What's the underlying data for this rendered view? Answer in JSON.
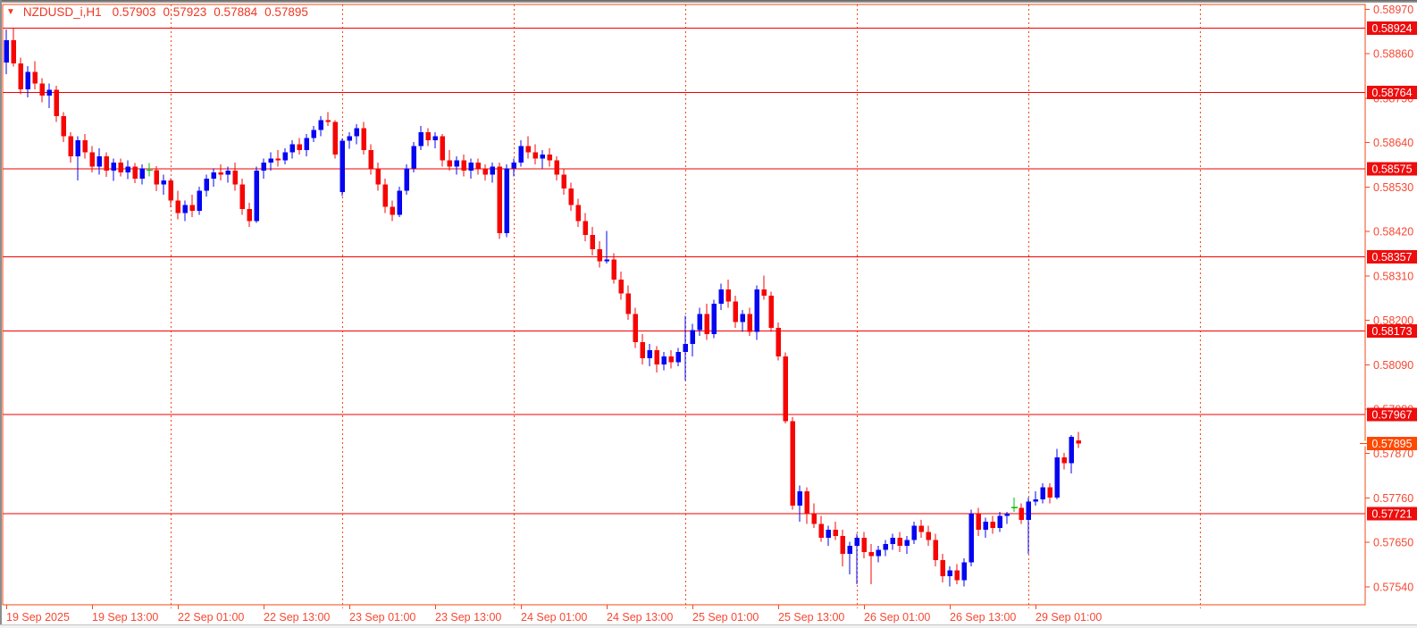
{
  "header": {
    "symbol_timeframe": "NZDUSD_i,H1",
    "open": "0.57903",
    "high": "0.57923",
    "low": "0.57884",
    "close": "0.57895",
    "marker_icon": "down-triangle"
  },
  "colors": {
    "background": "#ffffff",
    "frame": "#f24a16",
    "separator": "#f24a16",
    "level_line": "#ef0000",
    "axis_text": "#f64832",
    "title_text": "#ef3723",
    "badge_bg": "#ee0c0c",
    "current_badge_bg": "#ff4800",
    "badge_text": "#ffffff",
    "bear": "#f60505",
    "bull": "#0505f2",
    "doji": "#00bf00"
  },
  "chart_data": {
    "type": "candlestick",
    "title": "NZDUSD_i,H1 0.57903 0.57923 0.57884 0.57895",
    "symbol": "NZDUSD_i",
    "timeframe": "H1",
    "last_candle_ohlc": [
      0.57903,
      0.57923,
      0.57884,
      0.57895
    ],
    "current_price": 0.57895,
    "y_axis": {
      "side": "right",
      "ticks": [
        0.5897,
        0.5886,
        0.5875,
        0.5864,
        0.5853,
        0.5842,
        0.5831,
        0.582,
        0.5809,
        0.5798,
        0.5787,
        0.5776,
        0.5765,
        0.5754
      ],
      "tick_step": 0.0011,
      "visible_range": [
        0.5754,
        0.5897
      ]
    },
    "x_axis": {
      "labels": [
        "19 Sep 2025",
        "19 Sep 13:00",
        "22 Sep 01:00",
        "22 Sep 13:00",
        "23 Sep 01:00",
        "23 Sep 13:00",
        "24 Sep 01:00",
        "24 Sep 13:00",
        "25 Sep 01:00",
        "25 Sep 13:00",
        "26 Sep 01:00",
        "26 Sep 13:00",
        "29 Sep 01:00"
      ],
      "label_indices": [
        1,
        13,
        25,
        37,
        49,
        61,
        73,
        85,
        97,
        109,
        121,
        133,
        145
      ]
    },
    "level_lines": [
      0.58924,
      0.58764,
      0.58575,
      0.58357,
      0.58173,
      0.57967,
      0.57721
    ],
    "day_separator_indices": [
      24,
      48,
      72,
      96,
      120,
      144,
      168
    ],
    "grid": false,
    "legend": "none",
    "candles": [
      [
        0.5882,
        0.58845,
        0.588,
        0.58838
      ],
      [
        0.58838,
        0.5892,
        0.5881,
        0.58894
      ],
      [
        0.58894,
        0.58924,
        0.58828,
        0.58836
      ],
      [
        0.58836,
        0.5885,
        0.5876,
        0.58772
      ],
      [
        0.58772,
        0.5883,
        0.58752,
        0.58815
      ],
      [
        0.58815,
        0.58842,
        0.58772,
        0.58786
      ],
      [
        0.58786,
        0.588,
        0.5874,
        0.58756
      ],
      [
        0.58756,
        0.58786,
        0.58726,
        0.58771
      ],
      [
        0.58771,
        0.58781,
        0.58691,
        0.58706
      ],
      [
        0.58706,
        0.58716,
        0.58641,
        0.58656
      ],
      [
        0.58656,
        0.58666,
        0.58591,
        0.58606
      ],
      [
        0.58606,
        0.58656,
        0.58546,
        0.58646
      ],
      [
        0.58646,
        0.58661,
        0.58601,
        0.58616
      ],
      [
        0.58616,
        0.58631,
        0.58566,
        0.58581
      ],
      [
        0.58581,
        0.58626,
        0.58561,
        0.58606
      ],
      [
        0.58606,
        0.58616,
        0.58555,
        0.58571
      ],
      [
        0.58571,
        0.586,
        0.58545,
        0.58591
      ],
      [
        0.58591,
        0.58601,
        0.58556,
        0.58566
      ],
      [
        0.58566,
        0.58596,
        0.5855,
        0.58581
      ],
      [
        0.58581,
        0.5859,
        0.5854,
        0.58551
      ],
      [
        0.58551,
        0.58586,
        0.58536,
        0.58576
      ],
      [
        0.58572,
        0.5859,
        0.58556,
        0.58572
      ],
      [
        0.58572,
        0.58582,
        0.5852,
        0.58536
      ],
      [
        0.58536,
        0.58561,
        0.58511,
        0.58546
      ],
      [
        0.58546,
        0.58552,
        0.5848,
        0.58496
      ],
      [
        0.58496,
        0.58521,
        0.5845,
        0.58466
      ],
      [
        0.58466,
        0.58496,
        0.58446,
        0.58486
      ],
      [
        0.58486,
        0.58511,
        0.58456,
        0.58471
      ],
      [
        0.58471,
        0.58531,
        0.58461,
        0.58521
      ],
      [
        0.58521,
        0.58561,
        0.58506,
        0.58551
      ],
      [
        0.58551,
        0.58576,
        0.58531,
        0.58566
      ],
      [
        0.58566,
        0.58586,
        0.58546,
        0.58561
      ],
      [
        0.58561,
        0.58581,
        0.58541,
        0.58571
      ],
      [
        0.58571,
        0.58591,
        0.58521,
        0.58536
      ],
      [
        0.58536,
        0.58551,
        0.58461,
        0.58476
      ],
      [
        0.58476,
        0.58491,
        0.58431,
        0.58446
      ],
      [
        0.58446,
        0.58581,
        0.58441,
        0.58571
      ],
      [
        0.58571,
        0.58601,
        0.58551,
        0.58591
      ],
      [
        0.58591,
        0.58616,
        0.58571,
        0.58601
      ],
      [
        0.58601,
        0.58621,
        0.58581,
        0.58596
      ],
      [
        0.58596,
        0.58626,
        0.58586,
        0.58616
      ],
      [
        0.58616,
        0.58646,
        0.58601,
        0.58636
      ],
      [
        0.58636,
        0.58651,
        0.58611,
        0.58621
      ],
      [
        0.58621,
        0.58661,
        0.58606,
        0.58651
      ],
      [
        0.58651,
        0.58681,
        0.58641,
        0.58671
      ],
      [
        0.58671,
        0.58706,
        0.58656,
        0.58696
      ],
      [
        0.58696,
        0.58716,
        0.58681,
        0.58691
      ],
      [
        0.58691,
        0.58696,
        0.58601,
        0.58611
      ],
      [
        0.58518,
        0.5865,
        0.58508,
        0.58645
      ],
      [
        0.58645,
        0.58666,
        0.58625,
        0.58656
      ],
      [
        0.58656,
        0.58686,
        0.58636,
        0.58676
      ],
      [
        0.58676,
        0.58691,
        0.58611,
        0.58621
      ],
      [
        0.58621,
        0.58636,
        0.58561,
        0.58576
      ],
      [
        0.58576,
        0.58591,
        0.58521,
        0.58536
      ],
      [
        0.58536,
        0.58551,
        0.58466,
        0.58481
      ],
      [
        0.58481,
        0.58496,
        0.58446,
        0.58461
      ],
      [
        0.58461,
        0.58531,
        0.58456,
        0.58521
      ],
      [
        0.58521,
        0.58586,
        0.58511,
        0.58576
      ],
      [
        0.58576,
        0.58641,
        0.58566,
        0.58631
      ],
      [
        0.58631,
        0.58681,
        0.58621,
        0.58666
      ],
      [
        0.58666,
        0.58676,
        0.58631,
        0.58646
      ],
      [
        0.58646,
        0.58666,
        0.58626,
        0.58656
      ],
      [
        0.58656,
        0.58661,
        0.58581,
        0.58596
      ],
      [
        0.58596,
        0.58621,
        0.58571,
        0.58581
      ],
      [
        0.58581,
        0.58606,
        0.58561,
        0.58596
      ],
      [
        0.58596,
        0.58611,
        0.58556,
        0.58571
      ],
      [
        0.58571,
        0.58601,
        0.58551,
        0.58591
      ],
      [
        0.58591,
        0.58601,
        0.58561,
        0.58576
      ],
      [
        0.58576,
        0.58586,
        0.58546,
        0.58561
      ],
      [
        0.58561,
        0.58591,
        0.58541,
        0.58581
      ],
      [
        0.58581,
        0.58591,
        0.58401,
        0.58416
      ],
      [
        0.58416,
        0.58586,
        0.58406,
        0.58576
      ],
      [
        0.58576,
        0.58601,
        0.58556,
        0.58591
      ],
      [
        0.58591,
        0.58646,
        0.58581,
        0.58631
      ],
      [
        0.58631,
        0.58656,
        0.58601,
        0.58616
      ],
      [
        0.58616,
        0.58636,
        0.58586,
        0.58601
      ],
      [
        0.58601,
        0.58621,
        0.58576,
        0.58611
      ],
      [
        0.58611,
        0.58626,
        0.58581,
        0.58596
      ],
      [
        0.58596,
        0.58606,
        0.58546,
        0.58561
      ],
      [
        0.58561,
        0.58576,
        0.58511,
        0.58526
      ],
      [
        0.58526,
        0.58541,
        0.58471,
        0.58486
      ],
      [
        0.58486,
        0.58501,
        0.58431,
        0.58446
      ],
      [
        0.58446,
        0.58466,
        0.58396,
        0.58411
      ],
      [
        0.58411,
        0.58431,
        0.58361,
        0.58376
      ],
      [
        0.58376,
        0.58396,
        0.58331,
        0.58346
      ],
      [
        0.58346,
        0.58421,
        0.58341,
        0.58351
      ],
      [
        0.58351,
        0.58366,
        0.58291,
        0.58301
      ],
      [
        0.58301,
        0.58321,
        0.58251,
        0.58266
      ],
      [
        0.58266,
        0.58286,
        0.58201,
        0.58216
      ],
      [
        0.58216,
        0.58231,
        0.58131,
        0.58146
      ],
      [
        0.58146,
        0.58166,
        0.58091,
        0.58106
      ],
      [
        0.58106,
        0.58141,
        0.58086,
        0.58126
      ],
      [
        0.58126,
        0.58136,
        0.58071,
        0.58091
      ],
      [
        0.58091,
        0.58121,
        0.58076,
        0.58111
      ],
      [
        0.58111,
        0.58126,
        0.58081,
        0.58096
      ],
      [
        0.58096,
        0.58131,
        0.58086,
        0.58121
      ],
      [
        0.58121,
        0.58211,
        0.58051,
        0.58141
      ],
      [
        0.58141,
        0.58191,
        0.58111,
        0.58176
      ],
      [
        0.58176,
        0.58231,
        0.58161,
        0.58216
      ],
      [
        0.58216,
        0.58241,
        0.58151,
        0.58166
      ],
      [
        0.58166,
        0.58251,
        0.58156,
        0.58241
      ],
      [
        0.58241,
        0.58291,
        0.58226,
        0.58276
      ],
      [
        0.58276,
        0.58301,
        0.58231,
        0.58246
      ],
      [
        0.58246,
        0.58261,
        0.58181,
        0.58196
      ],
      [
        0.58196,
        0.58226,
        0.58171,
        0.58216
      ],
      [
        0.58216,
        0.58231,
        0.58161,
        0.58171
      ],
      [
        0.58171,
        0.58286,
        0.58151,
        0.58276
      ],
      [
        0.58276,
        0.58311,
        0.58251,
        0.58261
      ],
      [
        0.58261,
        0.58271,
        0.58171,
        0.58181
      ],
      [
        0.58181,
        0.58195,
        0.581,
        0.5811
      ],
      [
        0.5811,
        0.5812,
        0.57945,
        0.5795
      ],
      [
        0.5795,
        0.5796,
        0.57731,
        0.57741
      ],
      [
        0.57741,
        0.57791,
        0.57701,
        0.57776
      ],
      [
        0.57776,
        0.57786,
        0.57696,
        0.57721
      ],
      [
        0.57721,
        0.57746,
        0.57686,
        0.57696
      ],
      [
        0.57696,
        0.57716,
        0.57651,
        0.57661
      ],
      [
        0.57661,
        0.57691,
        0.57641,
        0.57681
      ],
      [
        0.57681,
        0.57701,
        0.57656,
        0.57666
      ],
      [
        0.57666,
        0.57681,
        0.57591,
        0.57621
      ],
      [
        0.57621,
        0.57651,
        0.57571,
        0.57641
      ],
      [
        0.57641,
        0.57671,
        0.57546,
        0.57661
      ],
      [
        0.57661,
        0.57676,
        0.57611,
        0.57626
      ],
      [
        0.57626,
        0.57646,
        0.57546,
        0.57616
      ],
      [
        0.57616,
        0.57641,
        0.57601,
        0.57631
      ],
      [
        0.57631,
        0.57656,
        0.57616,
        0.57646
      ],
      [
        0.57646,
        0.57671,
        0.57631,
        0.57661
      ],
      [
        0.57661,
        0.57676,
        0.57626,
        0.57641
      ],
      [
        0.57641,
        0.57666,
        0.57621,
        0.57656
      ],
      [
        0.57656,
        0.57701,
        0.57646,
        0.57691
      ],
      [
        0.57691,
        0.57706,
        0.57661,
        0.57676
      ],
      [
        0.57676,
        0.57691,
        0.57641,
        0.57656
      ],
      [
        0.57656,
        0.57671,
        0.57591,
        0.57606
      ],
      [
        0.57606,
        0.57621,
        0.57551,
        0.57566
      ],
      [
        0.57566,
        0.57591,
        0.57541,
        0.57581
      ],
      [
        0.57581,
        0.57596,
        0.57546,
        0.57556
      ],
      [
        0.57556,
        0.57611,
        0.57541,
        0.57601
      ],
      [
        0.57601,
        0.57731,
        0.57591,
        0.57721
      ],
      [
        0.57721,
        0.57736,
        0.57666,
        0.57681
      ],
      [
        0.57681,
        0.57711,
        0.57661,
        0.57701
      ],
      [
        0.57701,
        0.57716,
        0.57671,
        0.57686
      ],
      [
        0.57686,
        0.57726,
        0.57676,
        0.57716
      ],
      [
        0.57716,
        0.57726,
        0.57696,
        0.57721
      ],
      [
        0.57736,
        0.57761,
        0.57726,
        0.57736
      ],
      [
        0.57736,
        0.57746,
        0.57696,
        0.57706
      ],
      [
        0.57706,
        0.57761,
        0.57621,
        0.57751
      ],
      [
        0.57751,
        0.57776,
        0.57741,
        0.57756
      ],
      [
        0.57756,
        0.57796,
        0.57746,
        0.57786
      ],
      [
        0.57786,
        0.57796,
        0.57746,
        0.57761
      ],
      [
        0.57761,
        0.57881,
        0.57756,
        0.57861
      ],
      [
        0.57861,
        0.57871,
        0.57831,
        0.57846
      ],
      [
        0.57846,
        0.57916,
        0.57821,
        0.57911
      ],
      [
        0.57903,
        0.57923,
        0.57884,
        0.57895
      ]
    ]
  }
}
